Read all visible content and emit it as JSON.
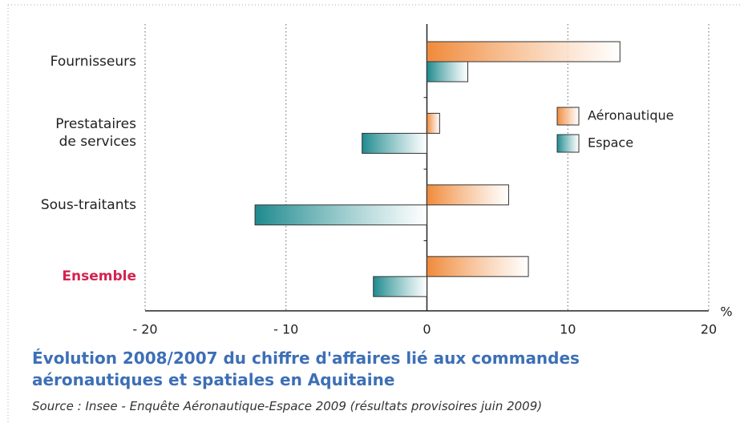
{
  "chart_data": {
    "type": "bar",
    "orientation": "horizontal",
    "title": "Évolution 2008/2007 du chiffre d'affaires lié aux commandes\naéronautiques et spatiales en Aquitaine",
    "source": "Source : Insee - Enquête Aéronautique-Espace 2009 (résultats provisoires juin 2009)",
    "x_unit": "%",
    "categories": [
      "Fournisseurs",
      "Prestataires\nde services",
      "Sous-traitants",
      "Ensemble"
    ],
    "highlight": {
      "category": 3,
      "color": "#d3234f"
    },
    "series": [
      {
        "name": "Aéronautique",
        "color": "#f08a3a",
        "values": [
          13.7,
          0.9,
          5.8,
          7.2
        ]
      },
      {
        "name": "Espace",
        "color": "#1e8a8e",
        "values": [
          2.9,
          -4.6,
          -12.2,
          -3.8
        ]
      }
    ],
    "xlim": [
      -20,
      20
    ],
    "xticks": [
      {
        "value": -20,
        "label": "- 20"
      },
      {
        "value": -10,
        "label": "- 10"
      },
      0,
      10,
      20
    ],
    "grid": true,
    "legend": "right"
  }
}
